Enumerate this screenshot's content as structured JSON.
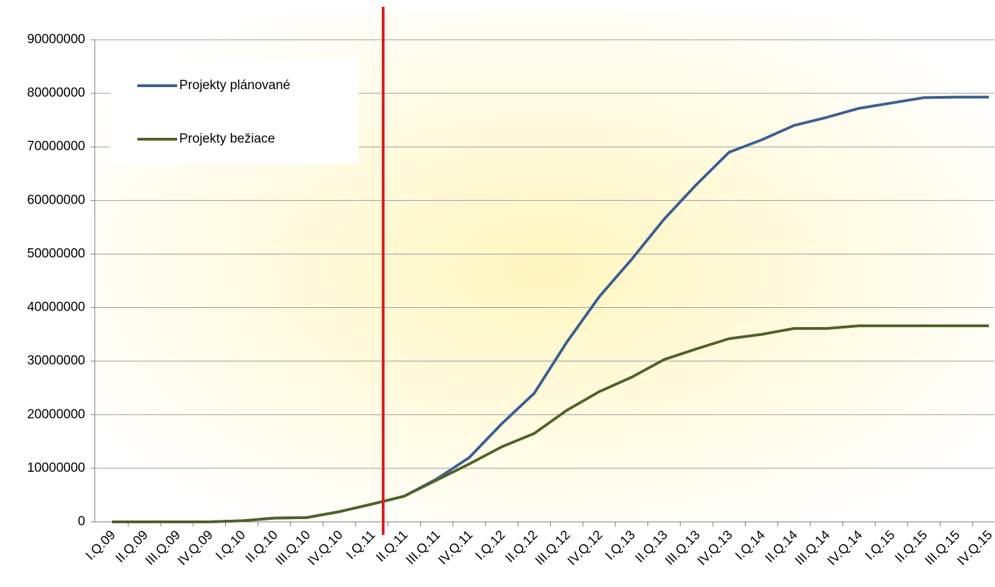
{
  "chart_data": {
    "type": "line",
    "categories": [
      "I.Q.09",
      "II.Q.09",
      "III.Q.09",
      "IV.Q.09",
      "I.Q.10",
      "II.Q.10",
      "III.Q.10",
      "IV.Q.10",
      "I.Q.11",
      "II.Q.11",
      "III.Q.11",
      "IV.Q.11",
      "I.Q.12",
      "II.Q.12",
      "III.Q.12",
      "IV.Q.12",
      "I.Q.13",
      "II.Q.13",
      "III.Q.13",
      "IV.Q.13",
      "I.Q.14",
      "II.Q.14",
      "III.Q.14",
      "IV.Q.14",
      "I.Q.15",
      "II.Q.15",
      "III.Q.15",
      "IV.Q.15"
    ],
    "series": [
      {
        "name": "Projekty plánované",
        "color": "#3a5f93",
        "values": [
          0,
          0,
          0,
          0,
          200000,
          700000,
          800000,
          1900000,
          3300000,
          4800000,
          8000000,
          12000000,
          18300000,
          24000000,
          33500000,
          42000000,
          49000000,
          56500000,
          63000000,
          69000000,
          71300000,
          74000000,
          75500000,
          77200000,
          78200000,
          79200000,
          79300000,
          79300000
        ]
      },
      {
        "name": "Projekty bežiace",
        "color": "#4f6228",
        "values": [
          0,
          0,
          0,
          0,
          200000,
          700000,
          800000,
          1900000,
          3300000,
          4800000,
          7800000,
          10800000,
          14000000,
          16500000,
          20800000,
          24300000,
          27000000,
          30300000,
          32300000,
          34200000,
          35000000,
          36100000,
          36100000,
          36600000,
          36600000,
          36600000,
          36600000,
          36600000
        ]
      }
    ],
    "ylim": [
      0,
      90000000
    ],
    "yticks": [
      0,
      10000000,
      20000000,
      30000000,
      40000000,
      50000000,
      60000000,
      70000000,
      80000000,
      90000000
    ],
    "grid": true
  }
}
